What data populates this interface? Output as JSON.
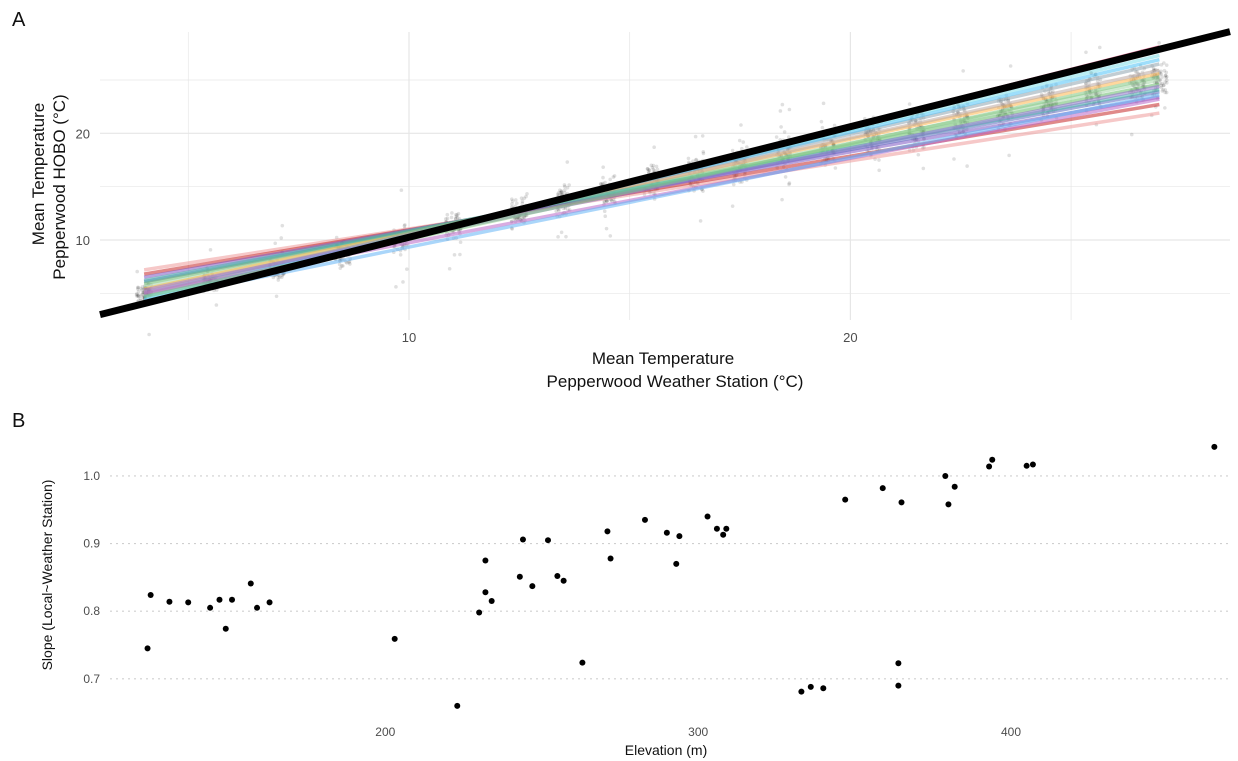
{
  "panels": {
    "a": {
      "label": "A"
    },
    "b": {
      "label": "B"
    }
  },
  "colors": {
    "identity_line": "#000000",
    "points_a": "#000000",
    "points_b": "#000000",
    "grid": "#e6e6e6",
    "grid_b": "#cfcfcf",
    "fits": [
      "#ef9a9a",
      "#c62828",
      "#7e57c2",
      "#5c6bc0",
      "#66bb6a",
      "#a5d6a7",
      "#ffb74d",
      "#bcaaa4",
      "#90a4ae",
      "#4fc3f7",
      "#80deea",
      "#f06292",
      "#e91e63",
      "#ba68c8",
      "#64b5f6",
      "#4db6ac",
      "#9575cd",
      "#81c784"
    ]
  },
  "chart_data": [
    {
      "type": "scatter",
      "panel": "A",
      "xlabel": "Mean Temperature",
      "xlabel2": "Pepperwood Weather Station (°C)",
      "ylabel": "Mean Temperature",
      "ylabel2": "Pepperwood HOBO (°C)",
      "xlim": [
        3,
        28.6
      ],
      "ylim": [
        2.5,
        29.5
      ],
      "xticks": [
        10,
        20
      ],
      "yticks": [
        10,
        20
      ],
      "grid": true,
      "identity_line": {
        "slope": 1,
        "intercept": 0
      },
      "fit_lines": [
        {
          "x": [
            4,
            27
          ],
          "y": [
            7.2,
            21.9
          ]
        },
        {
          "x": [
            4,
            27
          ],
          "y": [
            6.8,
            22.7
          ]
        },
        {
          "x": [
            4,
            27
          ],
          "y": [
            6.5,
            23.4
          ]
        },
        {
          "x": [
            4,
            27
          ],
          "y": [
            6.1,
            23.9
          ]
        },
        {
          "x": [
            4,
            27
          ],
          "y": [
            5.9,
            24.6
          ]
        },
        {
          "x": [
            4,
            27
          ],
          "y": [
            5.6,
            25.0
          ]
        },
        {
          "x": [
            4,
            27
          ],
          "y": [
            5.4,
            25.6
          ]
        },
        {
          "x": [
            4,
            27
          ],
          "y": [
            5.1,
            25.9
          ]
        },
        {
          "x": [
            4,
            27
          ],
          "y": [
            4.9,
            26.5
          ]
        },
        {
          "x": [
            4,
            27
          ],
          "y": [
            4.6,
            26.9
          ]
        },
        {
          "x": [
            4,
            27
          ],
          "y": [
            4.4,
            27.3
          ]
        },
        {
          "x": [
            4,
            27
          ],
          "y": [
            4.1,
            27.8
          ]
        },
        {
          "x": [
            4,
            27
          ],
          "y": [
            3.9,
            28.1
          ]
        },
        {
          "x": [
            4,
            27
          ],
          "y": [
            5.0,
            23.2
          ]
        },
        {
          "x": [
            4,
            27
          ],
          "y": [
            4.3,
            23.6
          ]
        },
        {
          "x": [
            4,
            27
          ],
          "y": [
            6.2,
            24.1
          ]
        },
        {
          "x": [
            4,
            27
          ],
          "y": [
            5.3,
            24.4
          ]
        },
        {
          "x": [
            4,
            27
          ],
          "y": [
            4.7,
            25.3
          ]
        }
      ],
      "point_clusters": [
        {
          "x": 4.0,
          "y_center": 5.0,
          "spread": 1.2
        },
        {
          "x": 5.5,
          "y_center": 6.0,
          "spread": 1.4
        },
        {
          "x": 7.0,
          "y_center": 7.2,
          "spread": 1.5
        },
        {
          "x": 8.5,
          "y_center": 8.6,
          "spread": 1.7
        },
        {
          "x": 9.8,
          "y_center": 10.0,
          "spread": 1.6
        },
        {
          "x": 11.0,
          "y_center": 11.2,
          "spread": 1.8
        },
        {
          "x": 12.5,
          "y_center": 12.6,
          "spread": 2.0
        },
        {
          "x": 13.5,
          "y_center": 13.7,
          "spread": 2.2
        },
        {
          "x": 14.5,
          "y_center": 14.6,
          "spread": 2.3
        },
        {
          "x": 15.5,
          "y_center": 15.4,
          "spread": 2.4
        },
        {
          "x": 16.5,
          "y_center": 16.3,
          "spread": 2.4
        },
        {
          "x": 17.5,
          "y_center": 17.1,
          "spread": 2.5
        },
        {
          "x": 18.5,
          "y_center": 18.0,
          "spread": 2.5
        },
        {
          "x": 19.5,
          "y_center": 18.8,
          "spread": 2.6
        },
        {
          "x": 20.5,
          "y_center": 19.6,
          "spread": 2.6
        },
        {
          "x": 21.5,
          "y_center": 20.4,
          "spread": 2.5
        },
        {
          "x": 22.5,
          "y_center": 21.3,
          "spread": 2.4
        },
        {
          "x": 23.5,
          "y_center": 22.2,
          "spread": 2.4
        },
        {
          "x": 24.5,
          "y_center": 23.0,
          "spread": 2.3
        },
        {
          "x": 25.5,
          "y_center": 23.9,
          "spread": 2.2
        },
        {
          "x": 26.5,
          "y_center": 24.6,
          "spread": 2.2
        },
        {
          "x": 27.0,
          "y_center": 25.2,
          "spread": 2.0
        }
      ]
    },
    {
      "type": "scatter",
      "panel": "B",
      "xlabel": "Elevation (m)",
      "ylabel": "Slope (Local~Weather Station)",
      "xlim": [
        112,
        470
      ],
      "ylim": [
        0.645,
        1.065
      ],
      "xticks": [
        200,
        300,
        400
      ],
      "yticks": [
        0.7,
        0.8,
        0.9,
        1.0
      ],
      "ytick_labels": [
        "0.7",
        "0.8",
        "0.9",
        "1.0"
      ],
      "grid": "horizontal dotted",
      "points": [
        [
          124,
          0.745
        ],
        [
          125,
          0.824
        ],
        [
          131,
          0.814
        ],
        [
          137,
          0.813
        ],
        [
          144,
          0.805
        ],
        [
          147,
          0.817
        ],
        [
          149,
          0.774
        ],
        [
          151,
          0.817
        ],
        [
          157,
          0.841
        ],
        [
          159,
          0.805
        ],
        [
          163,
          0.813
        ],
        [
          203,
          0.759
        ],
        [
          223,
          0.66
        ],
        [
          230,
          0.798
        ],
        [
          232,
          0.875
        ],
        [
          232,
          0.828
        ],
        [
          234,
          0.815
        ],
        [
          243,
          0.851
        ],
        [
          244,
          0.906
        ],
        [
          247,
          0.837
        ],
        [
          252,
          0.905
        ],
        [
          255,
          0.852
        ],
        [
          257,
          0.845
        ],
        [
          263,
          0.724
        ],
        [
          271,
          0.918
        ],
        [
          272,
          0.878
        ],
        [
          283,
          0.935
        ],
        [
          290,
          0.916
        ],
        [
          293,
          0.87
        ],
        [
          294,
          0.911
        ],
        [
          303,
          0.94
        ],
        [
          306,
          0.922
        ],
        [
          308,
          0.913
        ],
        [
          309,
          0.922
        ],
        [
          333,
          0.681
        ],
        [
          336,
          0.688
        ],
        [
          340,
          0.686
        ],
        [
          347,
          0.965
        ],
        [
          359,
          0.982
        ],
        [
          364,
          0.723
        ],
        [
          364,
          0.69
        ],
        [
          365,
          0.961
        ],
        [
          379,
          1.0
        ],
        [
          380,
          0.958
        ],
        [
          382,
          0.984
        ],
        [
          393,
          1.014
        ],
        [
          394,
          1.024
        ],
        [
          405,
          1.015
        ],
        [
          407,
          1.017
        ],
        [
          465,
          1.043
        ]
      ]
    }
  ]
}
